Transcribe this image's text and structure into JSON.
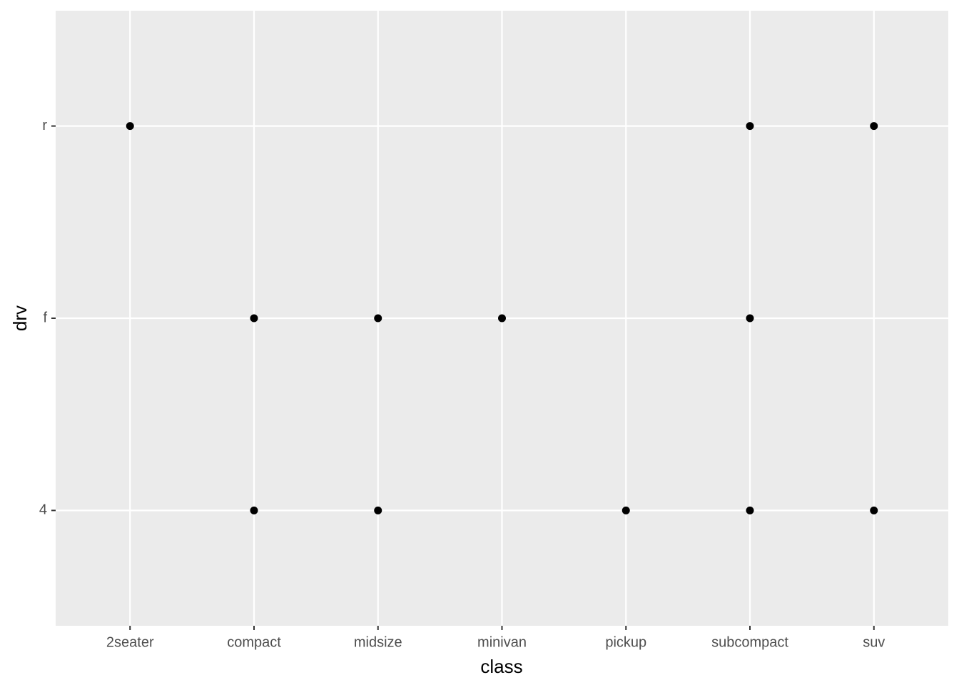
{
  "chart_data": {
    "type": "scatter",
    "x_label": "class",
    "y_label": "drv",
    "x_categories": [
      "2seater",
      "compact",
      "midsize",
      "minivan",
      "pickup",
      "subcompact",
      "suv"
    ],
    "y_categories": [
      "4",
      "f",
      "r"
    ],
    "points": {
      "x": [
        "2seater",
        "compact",
        "compact",
        "midsize",
        "midsize",
        "minivan",
        "pickup",
        "subcompact",
        "subcompact",
        "subcompact",
        "suv",
        "suv"
      ],
      "y": [
        "r",
        "f",
        "4",
        "f",
        "4",
        "f",
        "4",
        "r",
        "f",
        "4",
        "r",
        "4"
      ]
    },
    "color": "#000000",
    "grid": true
  }
}
